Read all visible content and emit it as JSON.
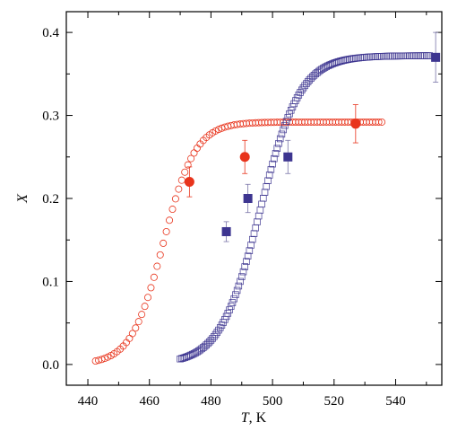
{
  "chart_data": {
    "type": "scatter",
    "xlabel_var": "T",
    "xlabel_unit": ", K",
    "ylabel": "X",
    "xlim": [
      433,
      555
    ],
    "ylim": [
      -0.025,
      0.425
    ],
    "x_ticks": [
      440,
      460,
      480,
      500,
      520,
      540
    ],
    "y_ticks": [
      0.0,
      0.1,
      0.2,
      0.3,
      0.4
    ],
    "x_tick_labels": [
      "440",
      "460",
      "480",
      "500",
      "520",
      "540"
    ],
    "y_tick_labels": [
      "0.0",
      "0.1",
      "0.2",
      "0.3",
      "0.4"
    ],
    "grid": false,
    "legend": "none",
    "series": [
      {
        "marker": "open-circle",
        "color": "#e8341c",
        "model": "sigmoid",
        "x_start": 442.5,
        "x_end": 536,
        "x_step": 1,
        "x_mid": 464.5,
        "width": 5.2,
        "ymax": 0.292
      },
      {
        "marker": "open-square",
        "color": "#3d3590",
        "model": "sigmoid",
        "x_start": 470,
        "x_end": 551,
        "x_step": 0.5,
        "x_mid": 496,
        "width": 6.5,
        "ymax": 0.372
      },
      {
        "marker": "filled-circle",
        "color": "#e8341c",
        "points": [
          {
            "x": 473,
            "y": 0.22,
            "err": 0.018
          },
          {
            "x": 491,
            "y": 0.25,
            "err": 0.02
          },
          {
            "x": 527,
            "y": 0.29,
            "err": 0.023
          }
        ]
      },
      {
        "marker": "filled-square",
        "color": "#3d3590",
        "points": [
          {
            "x": 485,
            "y": 0.16,
            "err": 0.012
          },
          {
            "x": 492,
            "y": 0.2,
            "err": 0.017
          },
          {
            "x": 505,
            "y": 0.25,
            "err": 0.02
          },
          {
            "x": 553,
            "y": 0.37,
            "err": 0.03
          }
        ]
      }
    ]
  }
}
